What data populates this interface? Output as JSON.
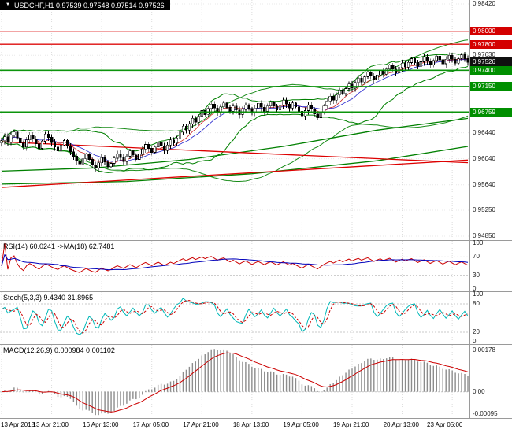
{
  "header": {
    "title": "USDCHF,H1 0.97539 0.97548 0.97514 0.97526",
    "dropdown_icon": "▼"
  },
  "colors": {
    "up": "#ffffff",
    "down": "#000000",
    "candle_stroke": "#000000",
    "band": "#008000",
    "ma_fast": "#cc2222",
    "ma_mid": "#2222cc",
    "trend_red": "#dd0000",
    "resistance": "#dd0000",
    "support": "#008f00",
    "rsi_main": "#cc0000",
    "rsi_ma": "#0000bb",
    "stoch_main": "#00b8b8",
    "stoch_signal": "#cc0000",
    "macd_hist": "#8c8c8c",
    "macd_signal": "#cc0000",
    "grid": "#dcdcdc",
    "level_dash": "#c8c8c8"
  },
  "chart_data": {
    "type": "candlestick",
    "symbol": "USDCHF",
    "timeframe": "H1",
    "title": "USDCHF,H1 0.97539 0.97548 0.97514 0.97526",
    "closes": [
      0.9632,
      0.9638,
      0.963,
      0.9641,
      0.9645,
      0.9636,
      0.9628,
      0.9622,
      0.9633,
      0.964,
      0.9635,
      0.9627,
      0.962,
      0.9631,
      0.9642,
      0.9637,
      0.9629,
      0.9622,
      0.9616,
      0.9625,
      0.9632,
      0.9624,
      0.9615,
      0.9608,
      0.9601,
      0.9596,
      0.9604,
      0.9611,
      0.9603,
      0.9595,
      0.959,
      0.9598,
      0.9606,
      0.9599,
      0.9592,
      0.9597,
      0.9605,
      0.9612,
      0.9606,
      0.96,
      0.9608,
      0.9616,
      0.961,
      0.9603,
      0.9611,
      0.9619,
      0.9626,
      0.962,
      0.9614,
      0.9622,
      0.963,
      0.9624,
      0.9617,
      0.9625,
      0.9633,
      0.9628,
      0.9636,
      0.9645,
      0.9654,
      0.9648,
      0.9657,
      0.9666,
      0.966,
      0.9669,
      0.9678,
      0.9672,
      0.9681,
      0.9688,
      0.9682,
      0.9676,
      0.9684,
      0.969,
      0.9683,
      0.9677,
      0.9685,
      0.9679,
      0.9672,
      0.968,
      0.9687,
      0.9681,
      0.9674,
      0.9682,
      0.9689,
      0.9683,
      0.9677,
      0.9685,
      0.9691,
      0.9685,
      0.9679,
      0.9687,
      0.9694,
      0.9688,
      0.9682,
      0.969,
      0.9684,
      0.9677,
      0.967,
      0.9678,
      0.9686,
      0.968,
      0.9673,
      0.9667,
      0.9676,
      0.9685,
      0.9693,
      0.97,
      0.9694,
      0.9702,
      0.971,
      0.9704,
      0.9712,
      0.9719,
      0.9713,
      0.9721,
      0.9728,
      0.9722,
      0.973,
      0.9737,
      0.9731,
      0.9725,
      0.9733,
      0.974,
      0.9734,
      0.9742,
      0.9748,
      0.9742,
      0.9736,
      0.9744,
      0.9751,
      0.9745,
      0.9752,
      0.9758,
      0.9752,
      0.9746,
      0.9753,
      0.976,
      0.9754,
      0.9748,
      0.9755,
      0.9762,
      0.9756,
      0.975,
      0.9757,
      0.9763,
      0.9757,
      0.9751,
      0.9758,
      0.9764,
      0.9758,
      0.97526
    ],
    "price_axis": {
      "min": 0.9479,
      "max": 0.9848,
      "ticks": [
        {
          "value": 0.9842,
          "label": "0.98420"
        },
        {
          "value": 0.9763,
          "label": "0.97630"
        },
        {
          "value": 0.9644,
          "label": "0.96440"
        },
        {
          "value": 0.9604,
          "label": "0.96040"
        },
        {
          "value": 0.9564,
          "label": "0.95640"
        },
        {
          "value": 0.9525,
          "label": "0.95250"
        },
        {
          "value": 0.9485,
          "label": "0.94850"
        }
      ],
      "badges": [
        {
          "value": 0.98,
          "label": "0.98000",
          "color": "red"
        },
        {
          "value": 0.978,
          "label": "0.97800",
          "color": "red"
        },
        {
          "value": 0.97526,
          "label": "0.97526",
          "color": "black"
        },
        {
          "value": 0.974,
          "label": "0.97400",
          "color": "green"
        },
        {
          "value": 0.9715,
          "label": "0.97150",
          "color": "green"
        },
        {
          "value": 0.96759,
          "label": "0.96759",
          "color": "green"
        }
      ]
    },
    "levels": {
      "resistance": [
        0.98,
        0.978
      ],
      "support": [
        0.974,
        0.9715,
        0.96759
      ],
      "current": 0.97526
    },
    "overlay_lines": {
      "red_trend_down": {
        "from": [
          0,
          0.963
        ],
        "to": [
          149,
          0.9598
        ]
      },
      "red_trend_up": {
        "from": [
          0,
          0.956
        ],
        "to": [
          149,
          0.9602
        ]
      },
      "green_ma_slow": [
        [
          0,
          0.9585
        ],
        [
          30,
          0.959
        ],
        [
          60,
          0.9603
        ],
        [
          90,
          0.9623
        ],
        [
          120,
          0.9648
        ],
        [
          149,
          0.9666
        ]
      ],
      "green_ma_slower": [
        [
          0,
          0.9565
        ],
        [
          40,
          0.9569
        ],
        [
          80,
          0.9581
        ],
        [
          120,
          0.9601
        ],
        [
          149,
          0.9623
        ]
      ]
    },
    "time_labels": [
      {
        "bar": 0,
        "label": "13 Apr 2018"
      },
      {
        "bar": 16,
        "label": "13 Apr 21:00"
      },
      {
        "bar": 32,
        "label": "16 Apr 13:00"
      },
      {
        "bar": 48,
        "label": "17 Apr 05:00"
      },
      {
        "bar": 64,
        "label": "17 Apr 21:00"
      },
      {
        "bar": 80,
        "label": "18 Apr 13:00"
      },
      {
        "bar": 96,
        "label": "19 Apr 05:00"
      },
      {
        "bar": 112,
        "label": "19 Apr 21:00"
      },
      {
        "bar": 128,
        "label": "20 Apr 13:00"
      },
      {
        "bar": 144,
        "label": "23 Apr 05:00"
      }
    ],
    "rsi": {
      "label": "RSI(14) 60.0241  ->MA(18) 62.7481",
      "period": 14,
      "ma_period": 18,
      "value": 60.0241,
      "ma_value": 62.7481,
      "levels": [
        70,
        30
      ],
      "axis": [
        100,
        70,
        30,
        0
      ]
    },
    "stoch": {
      "label": "Stoch(5,3,3) 9.4340 31.8965",
      "main_value": 9.434,
      "signal_value": 31.8965,
      "levels": [
        80,
        20
      ],
      "axis": [
        100,
        80,
        20,
        0
      ]
    },
    "macd": {
      "label": "MACD(12,26,9) 0.000984 0.001102",
      "macd_value": 0.000984,
      "signal_value": 0.001102,
      "axis_top": "0.00178",
      "axis_zero": "0.00",
      "axis_bottom": "-0.00095",
      "range": [
        -0.00095,
        0.00178
      ]
    }
  }
}
